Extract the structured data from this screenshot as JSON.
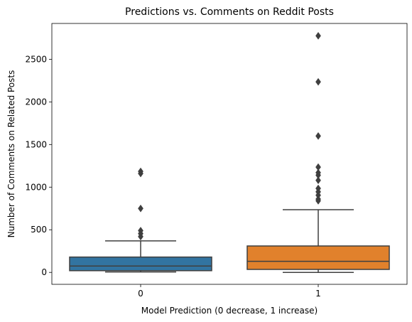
{
  "chart_data": {
    "type": "box",
    "title": "Predictions vs. Comments on Reddit Posts",
    "xlabel": "Model Prediction (0 decrease, 1 increase)",
    "ylabel": "Number of Comments on Related Posts",
    "categories": [
      "0",
      "1"
    ],
    "ylim": [
      -140,
      2920
    ],
    "yticks": [
      0,
      500,
      1000,
      1500,
      2000,
      2500
    ],
    "grid": false,
    "boxes": [
      {
        "category": "0",
        "color": "#3274a1",
        "whisker_low": 5,
        "q1": 20,
        "median": 75,
        "q3": 180,
        "whisker_high": 370,
        "outliers": [
          1185,
          1160,
          750,
          490,
          455,
          420
        ]
      },
      {
        "category": "1",
        "color": "#e1812c",
        "whisker_low": 0,
        "q1": 35,
        "median": 130,
        "q3": 310,
        "whisker_high": 735,
        "outliers": [
          2775,
          2235,
          1600,
          1235,
          1170,
          1140,
          1080,
          985,
          945,
          905,
          860,
          840
        ]
      }
    ],
    "line_color": "#3f3f3f"
  }
}
